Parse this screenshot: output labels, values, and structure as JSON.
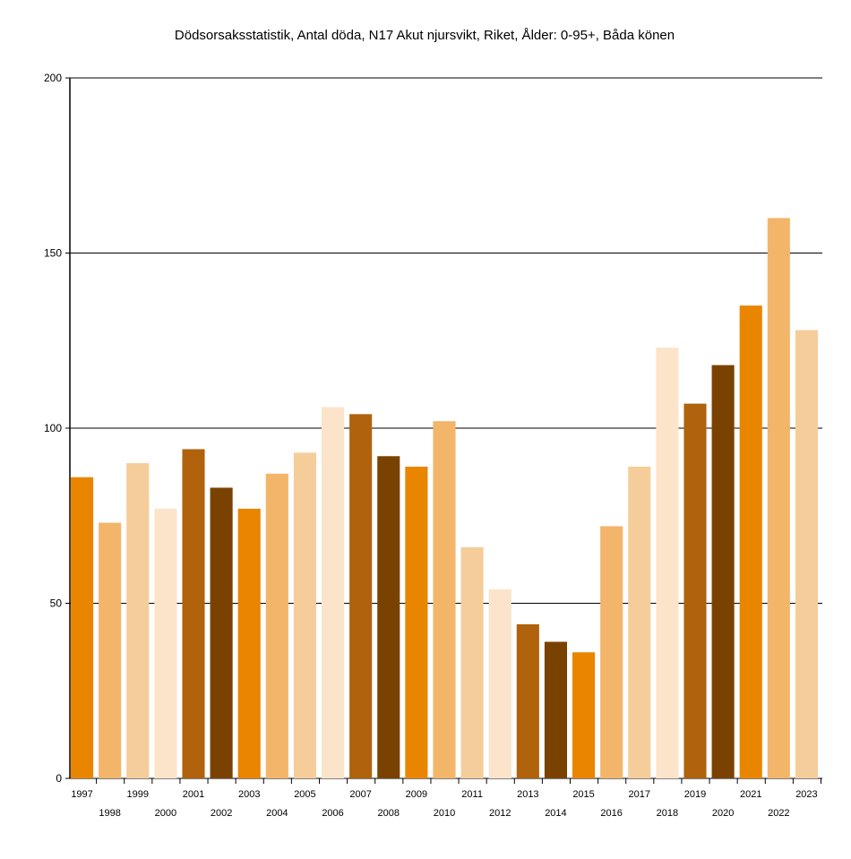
{
  "chart_data": {
    "type": "bar",
    "title": "Dödsorsaksstatistik, Antal döda, N17 Akut njursvikt, Riket, Ålder: 0-95+, Båda könen",
    "xlabel": "",
    "ylabel": "",
    "ylim": [
      0,
      200
    ],
    "yticks": [
      0,
      50,
      100,
      150,
      200
    ],
    "grid": true,
    "categories": [
      "1997",
      "1998",
      "1999",
      "2000",
      "2001",
      "2002",
      "2003",
      "2004",
      "2005",
      "2006",
      "2007",
      "2008",
      "2009",
      "2010",
      "2011",
      "2012",
      "2013",
      "2014",
      "2015",
      "2016",
      "2017",
      "2018",
      "2019",
      "2020",
      "2021",
      "2022",
      "2023"
    ],
    "values": [
      86,
      73,
      90,
      77,
      94,
      83,
      77,
      87,
      93,
      106,
      104,
      92,
      89,
      102,
      66,
      54,
      44,
      39,
      36,
      72,
      89,
      123,
      107,
      118,
      135,
      160,
      128
    ],
    "colors": [
      "#EA8500",
      "#F2B56A",
      "#F5CD9A",
      "#FCE4CB",
      "#B0620C",
      "#7A4200"
    ]
  }
}
